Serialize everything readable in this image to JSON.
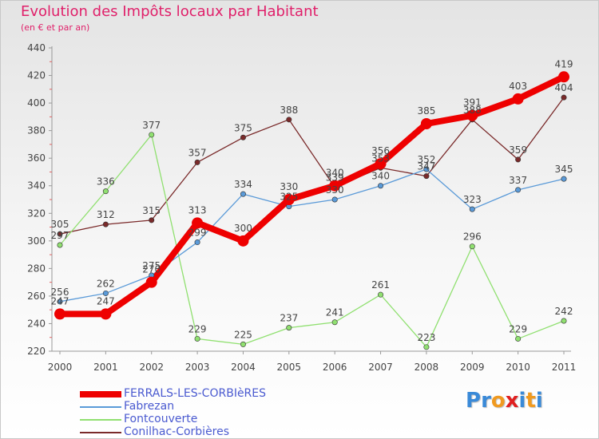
{
  "header": {
    "title": "Evolution des Impôts locaux par Habitant",
    "subtitle": "(en € et par an)"
  },
  "logo": {
    "letters": [
      "P",
      "r",
      "o",
      "x",
      "i",
      "t",
      "i"
    ],
    "colors": [
      "#3a8ad8",
      "#3a8ad8",
      "#f09a20",
      "#e02020",
      "#3a8ad8",
      "#f09a20",
      "#3a8ad8"
    ]
  },
  "chart_data": {
    "type": "line",
    "title": "Evolution des Impôts locaux par Habitant",
    "subtitle": "(en € et par an)",
    "x": [
      "2000",
      "2001",
      "2002",
      "2003",
      "2004",
      "2005",
      "2006",
      "2007",
      "2008",
      "2009",
      "2010",
      "2011"
    ],
    "ylim": [
      220,
      440
    ],
    "yticks": [
      220,
      240,
      260,
      280,
      300,
      320,
      340,
      360,
      380,
      400,
      420,
      440
    ],
    "grid": false,
    "legend_position": "bottom",
    "series": [
      {
        "name": "FERRALS-LES-CORBIèRES",
        "color": "#ee0000",
        "values": [
          247,
          247,
          270,
          313,
          300,
          330,
          340,
          356,
          385,
          391,
          403,
          419
        ],
        "labels": [
          "247",
          "247",
          "270",
          "313",
          "300",
          "330",
          "340",
          "356",
          "385",
          "391",
          "403",
          "419"
        ]
      },
      {
        "name": "Fabrezan",
        "color": "#5a9ad8",
        "values": [
          256,
          262,
          275,
          299,
          334,
          325,
          330,
          340,
          352,
          323,
          337,
          345
        ],
        "labels": [
          "256",
          "262",
          "275",
          "299",
          "334",
          "325",
          "330",
          "340",
          "352",
          "323",
          "337",
          "345"
        ]
      },
      {
        "name": "Fontcouverte",
        "color": "#90e070",
        "values": [
          297,
          336,
          377,
          229,
          225,
          237,
          241,
          261,
          223,
          296,
          229,
          242
        ],
        "labels": [
          "297",
          "336",
          "377",
          "229",
          "225",
          "237",
          "241",
          "261",
          "223",
          "296",
          "229",
          "242"
        ]
      },
      {
        "name": "Conilhac-Corbières",
        "color": "#7a2a2a",
        "values": [
          305,
          312,
          315,
          357,
          375,
          388,
          339,
          353,
          347,
          388,
          359,
          404
        ],
        "labels": [
          "305",
          "312",
          "315",
          "357",
          "375",
          "388",
          "339",
          "353",
          "347",
          "388",
          "359",
          "404"
        ]
      }
    ]
  }
}
